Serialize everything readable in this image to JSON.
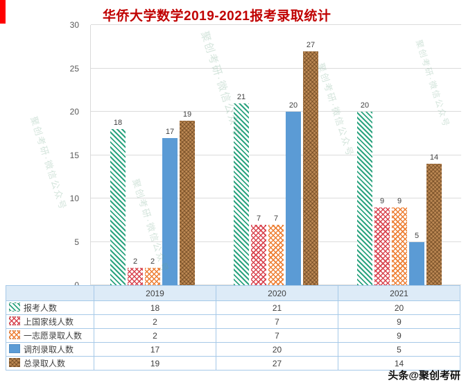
{
  "title": "华侨大学数学2019-2021报考录取统计",
  "watermarks": {
    "diagonal": "聚创考研·微信公众号",
    "footer": "头条@聚创考研"
  },
  "colors": {
    "title": "#C00000",
    "green": "#2BA37F",
    "red": "#D8434E",
    "orange": "#ED7D31",
    "blue": "#5B9BD5",
    "brown": "#BE8A55",
    "table_border": "#A6C9E8",
    "table_header_bg": "#DDEBF7",
    "accent_stripe": "#FF0000"
  },
  "chart_data": {
    "type": "bar",
    "title": "华侨大学数学2019-2021报考录取统计",
    "categories": [
      "2019",
      "2020",
      "2021"
    ],
    "series": [
      {
        "name": "报考人数",
        "style": "green-diagonal",
        "values": [
          18,
          21,
          20
        ]
      },
      {
        "name": "上国家线人数",
        "style": "red-crosshatch",
        "values": [
          2,
          7,
          9
        ]
      },
      {
        "name": "一志愿录取人数",
        "style": "orange-crosshatch",
        "values": [
          2,
          7,
          9
        ]
      },
      {
        "name": "调剂录取人数",
        "style": "blue-solid",
        "values": [
          17,
          20,
          5
        ]
      },
      {
        "name": "总录取人数",
        "style": "brown-weave",
        "values": [
          19,
          27,
          14
        ]
      }
    ],
    "xlabel": "",
    "ylabel": "",
    "ylim": [
      0,
      30
    ],
    "yticks": [
      0,
      5,
      10,
      15,
      20,
      25,
      30
    ],
    "grid": true,
    "legend_position": "table-left",
    "data_labels": true
  }
}
